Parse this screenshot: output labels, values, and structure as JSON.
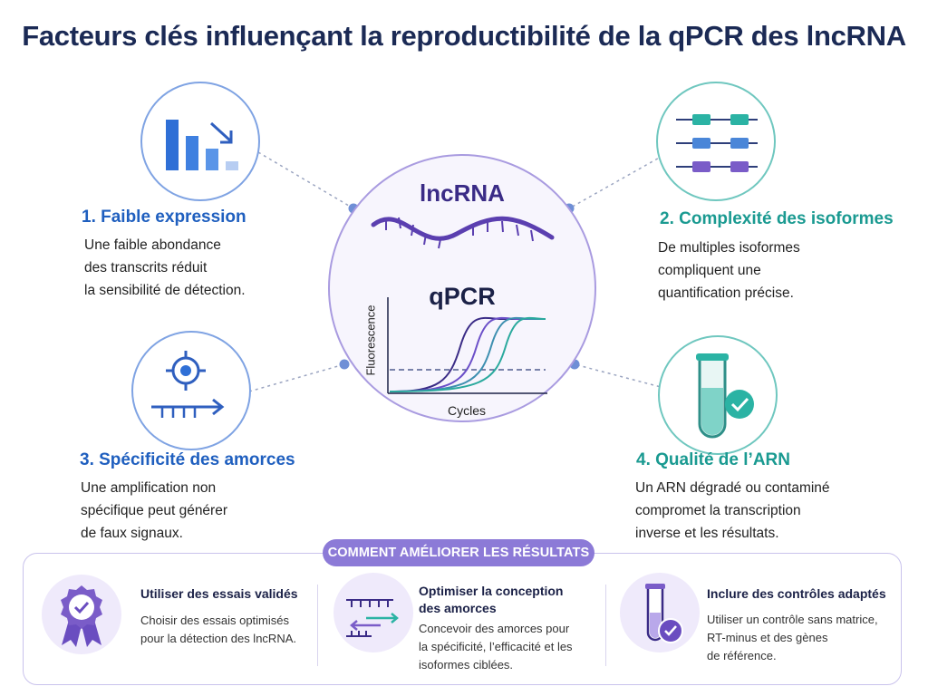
{
  "title": "Facteurs clés influençant la reproductibilité de la qPCR des lncRNA",
  "center": {
    "lncrna_label": "lncRNA",
    "qpcr_label": "qPCR",
    "y_axis_label": "Fluorescence",
    "x_axis_label": "Cycles"
  },
  "factors": [
    {
      "title": "1. Faible expression",
      "desc": [
        "Une faible abondance",
        "des transcrits réduit",
        "la sensibilité de détection."
      ],
      "icon": "declining-bar-chart-icon",
      "color": "#1f5fbf"
    },
    {
      "title": "2. Complexité des isoformes",
      "desc": [
        "De multiples isoformes",
        "compliquent une",
        "quantification précise."
      ],
      "icon": "isoform-exons-icon",
      "color": "#1a9a91"
    },
    {
      "title": "3. Spécificité des amorces",
      "desc": [
        "Une amplification non",
        "spécifique peut générer",
        "de faux signaux."
      ],
      "icon": "primer-target-icon",
      "color": "#1f5fbf"
    },
    {
      "title": "4. Qualité de l’ARN",
      "desc": [
        "Un ARN dégradé ou contaminé",
        "compromet la transcription",
        "inverse et les résultats."
      ],
      "icon": "rna-tube-check-icon",
      "color": "#1a9a91"
    }
  ],
  "banner": {
    "label": "COMMENT AMÉLIORER LES RÉSULTATS",
    "tips": [
      {
        "title": "Utiliser des essais validés",
        "desc": [
          "Choisir des essais optimisés",
          "pour la détection des lncRNA."
        ],
        "icon": "award-ribbon-icon"
      },
      {
        "title": "Optimiser la conception des amorces",
        "title_lines": [
          "Optimiser la conception",
          "des amorces"
        ],
        "desc": [
          "Concevoir des amorces pour",
          "la spécificité, l’efficacité et les",
          "isoformes ciblées."
        ],
        "icon": "primer-pair-icon"
      },
      {
        "title": "Inclure des contrôles adaptés",
        "desc": [
          "Utiliser un contrôle sans matrice,",
          "RT-minus et des gènes",
          "de référence."
        ],
        "icon": "control-tube-icon"
      }
    ]
  },
  "colors": {
    "title": "#1b2a55",
    "blue_accent": "#1f5fbf",
    "teal_accent": "#1a9a91",
    "purple_accent": "#7a5cc8",
    "banner_pill": "#8c7ad7"
  }
}
